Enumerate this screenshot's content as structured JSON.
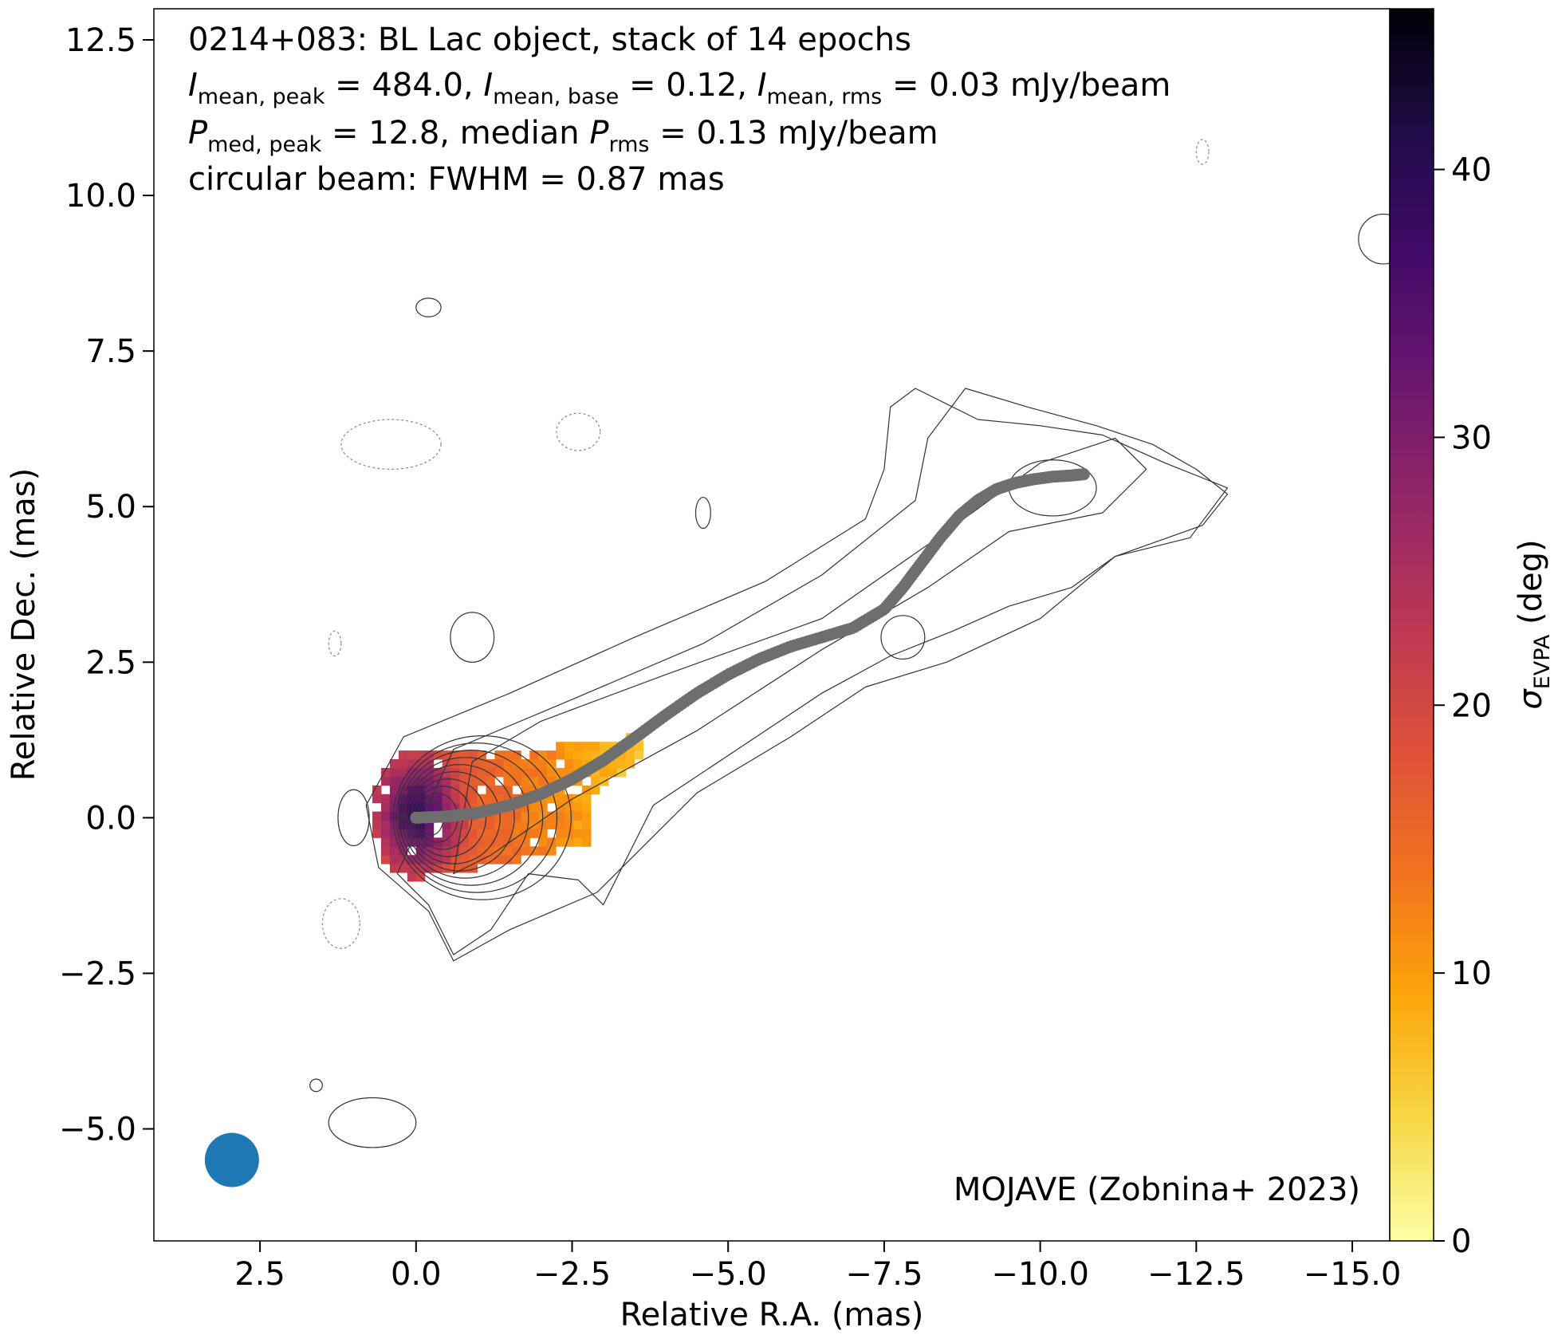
{
  "chart_data": {
    "type": "contour",
    "source": "0214+083",
    "info_lines": {
      "line1": "0214+083: BL Lac object, stack of 14 epochs",
      "line2": {
        "i_peak_sub": "mean, peak",
        "i_peak_value": " = 484.0, ",
        "i_base_sub": "mean, base",
        "i_base_value": " = 0.12, ",
        "i_rms_sub": "mean, rms",
        "i_rms_value": " = 0.03 mJy/beam",
        "symbol_i": "I"
      },
      "line3": {
        "symbol_p": "P",
        "p_peak_sub": "med, peak",
        "p_peak_value": " = 12.8, median ",
        "p_rms_sub": "rms",
        "p_rms_value": " = 0.13 mJy/beam"
      },
      "line4": "circular beam: FWHM = 0.87 mas"
    },
    "credit": "MOJAVE (Zobnina+ 2023)",
    "xlabel": "Relative R.A. (mas)",
    "ylabel": "Relative Dec. (mas)",
    "xlim": [
      4.2,
      -15.6
    ],
    "ylim": [
      -6.8,
      13.0
    ],
    "x_ticks": [
      2.5,
      0.0,
      -2.5,
      -5.0,
      -7.5,
      -10.0,
      -12.5,
      -15.0
    ],
    "x_tick_labels": [
      "2.5",
      "0.0",
      "−2.5",
      "−5.0",
      "−7.5",
      "−10.0",
      "−12.5",
      "−15.0"
    ],
    "y_ticks": [
      -5.0,
      -2.5,
      0.0,
      2.5,
      5.0,
      7.5,
      10.0,
      12.5
    ],
    "y_tick_labels": [
      "−5.0",
      "−2.5",
      "0.0",
      "2.5",
      "5.0",
      "7.5",
      "10.0",
      "12.5"
    ],
    "colorbar": {
      "label_symbol": "σ",
      "label_sub": "EVPA",
      "label_unit": " (deg)",
      "range": [
        0,
        46
      ],
      "ticks": [
        0,
        10,
        20,
        30,
        40
      ],
      "tick_labels": [
        "0",
        "10",
        "20",
        "30",
        "40"
      ],
      "colormap": "inferno_r",
      "stops": [
        "#fcffa4",
        "#f6d746",
        "#fca50a",
        "#f1711f",
        "#dd513a",
        "#bc3754",
        "#932667",
        "#6a176e",
        "#420a68",
        "#1f0c48",
        "#000004"
      ]
    },
    "beam": {
      "x": 2.95,
      "y": -5.5,
      "fwhm_mas": 0.87,
      "color": "#1f77b4"
    },
    "ridge_line": {
      "color": "#6e6e6e",
      "x": [
        0.0,
        -0.5,
        -1.0,
        -1.5,
        -2.0,
        -2.5,
        -3.0,
        -3.5,
        -4.0,
        -4.5,
        -5.0,
        -5.5,
        -6.0,
        -6.5,
        -7.0,
        -7.5,
        -7.8,
        -8.1,
        -8.4,
        -8.7,
        -9.0,
        -9.3,
        -9.6,
        -9.9,
        -10.2,
        -10.5,
        -10.7
      ],
      "y": [
        0.0,
        0.02,
        0.08,
        0.2,
        0.38,
        0.62,
        0.92,
        1.28,
        1.65,
        2.0,
        2.3,
        2.55,
        2.75,
        2.9,
        3.05,
        3.35,
        3.7,
        4.1,
        4.5,
        4.85,
        5.1,
        5.28,
        5.38,
        5.44,
        5.48,
        5.5,
        5.52
      ]
    },
    "polarization_region": {
      "core_x": 0.0,
      "core_y": 0.0,
      "extent_x": [
        0.7,
        -3.7
      ],
      "sigma_evpa_core_deg": 40,
      "sigma_evpa_jet_deg": 6
    }
  }
}
